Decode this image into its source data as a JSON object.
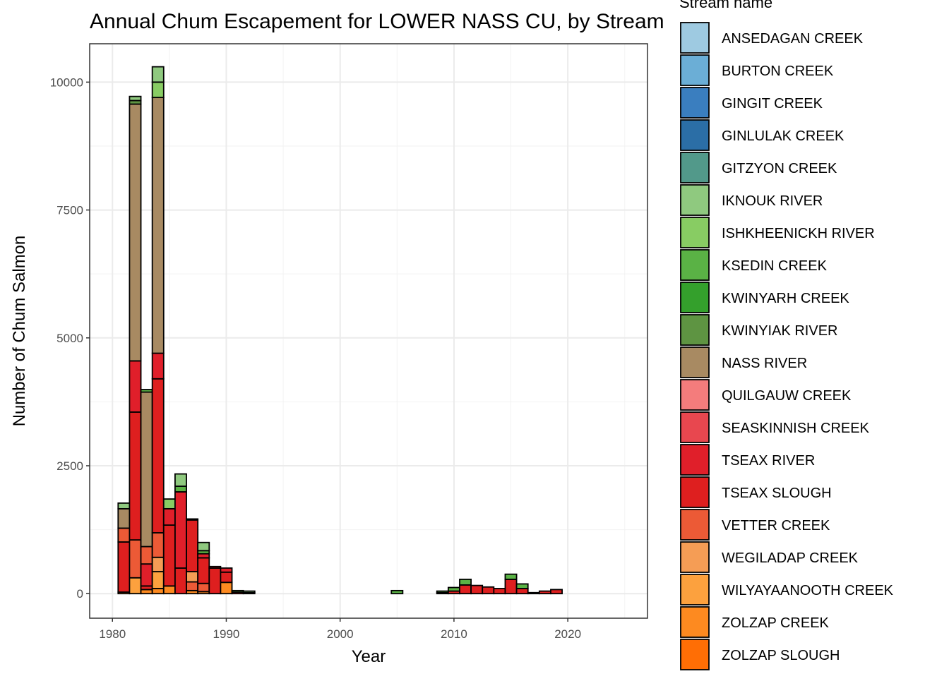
{
  "chart_data": {
    "type": "bar",
    "stacked": true,
    "title": "Annual Chum Escapement for LOWER NASS CU, by Stream",
    "xlabel": "Year",
    "ylabel": "Number of Chum Salmon",
    "xlim": [
      1978,
      2027
    ],
    "ylim": [
      -480,
      10750
    ],
    "x_ticks": [
      1980,
      1990,
      2000,
      2010,
      2020
    ],
    "y_ticks": [
      0,
      2500,
      5000,
      7500,
      10000
    ],
    "x_tick_labels": [
      "1980",
      "1990",
      "2000",
      "2010",
      "2020"
    ],
    "y_tick_labels": [
      "0",
      "2500",
      "5000",
      "7500",
      "10000"
    ],
    "grid": true,
    "legend": {
      "title": "Stream name",
      "position": "right",
      "entries": [
        {
          "name": "ANSEDAGAN CREEK",
          "color": "#9ecae1"
        },
        {
          "name": "BURTON CREEK",
          "color": "#6baed6"
        },
        {
          "name": "GINGIT CREEK",
          "color": "#3a7ebf"
        },
        {
          "name": "GINLULAK CREEK",
          "color": "#2b6ea6"
        },
        {
          "name": "GITZYON CREEK",
          "color": "#52998a"
        },
        {
          "name": "IKNOUK RIVER",
          "color": "#8fc97f"
        },
        {
          "name": "ISHKHEENICKH RIVER",
          "color": "#88cc63"
        },
        {
          "name": "KSEDIN CREEK",
          "color": "#5ab245"
        },
        {
          "name": "KWINYARH CREEK",
          "color": "#34a02c"
        },
        {
          "name": "KWINYIAK RIVER",
          "color": "#5e9442"
        },
        {
          "name": "NASS RIVER",
          "color": "#a88a62"
        },
        {
          "name": "QUILGAUW CREEK",
          "color": "#f47c7c"
        },
        {
          "name": "SEASKINNISH CREEK",
          "color": "#e8474f"
        },
        {
          "name": "TSEAX RIVER",
          "color": "#e01f2a"
        },
        {
          "name": "TSEAX SLOUGH",
          "color": "#de1f1f"
        },
        {
          "name": "VETTER CREEK",
          "color": "#ec5a36"
        },
        {
          "name": "WEGILADAP CREEK",
          "color": "#f59d55"
        },
        {
          "name": "WILYAYAANOOTH CREEK",
          "color": "#fca13e"
        },
        {
          "name": "ZOLZAP CREEK",
          "color": "#fd8a20"
        },
        {
          "name": "ZOLZAP SLOUGH",
          "color": "#ff6e05"
        }
      ]
    },
    "bars": [
      {
        "x": 1981,
        "stacks": [
          [
            "ZOLZAP CREEK",
            30
          ],
          [
            "TSEAX SLOUGH",
            980
          ],
          [
            "VETTER CREEK",
            270
          ],
          [
            "NASS RIVER",
            380
          ],
          [
            "IKNOUK RIVER",
            110
          ]
        ]
      },
      {
        "x": 1982,
        "stacks": [
          [
            "WILYAYAANOOTH CREEK",
            310
          ],
          [
            "VETTER CREEK",
            740
          ],
          [
            "TSEAX SLOUGH",
            2500
          ],
          [
            "TSEAX RIVER",
            1000
          ],
          [
            "NASS RIVER",
            5020
          ],
          [
            "KWINYIAK RIVER",
            70
          ],
          [
            "IKNOUK RIVER",
            80
          ]
        ]
      },
      {
        "x": 1983,
        "stacks": [
          [
            "ZOLZAP CREEK",
            80
          ],
          [
            "TSEAX SLOUGH",
            70
          ],
          [
            "TSEAX RIVER",
            430
          ],
          [
            "VETTER CREEK",
            340
          ],
          [
            "NASS RIVER",
            3020
          ],
          [
            "KSEDIN CREEK",
            50
          ]
        ]
      },
      {
        "x": 1984,
        "stacks": [
          [
            "ZOLZAP CREEK",
            100
          ],
          [
            "WILYAYAANOOTH CREEK",
            330
          ],
          [
            "WEGILADAP CREEK",
            280
          ],
          [
            "VETTER CREEK",
            480
          ],
          [
            "TSEAX SLOUGH",
            3010
          ],
          [
            "TSEAX RIVER",
            500
          ],
          [
            "NASS RIVER",
            5000
          ],
          [
            "ISHKHEENICKH RIVER",
            300
          ],
          [
            "IKNOUK RIVER",
            300
          ]
        ]
      },
      {
        "x": 1985,
        "stacks": [
          [
            "ZOLZAP CREEK",
            150
          ],
          [
            "TSEAX SLOUGH",
            1190
          ],
          [
            "TSEAX RIVER",
            320
          ],
          [
            "ISHKHEENICKH RIVER",
            190
          ]
        ]
      },
      {
        "x": 1986,
        "stacks": [
          [
            "TSEAX SLOUGH",
            500
          ],
          [
            "TSEAX RIVER",
            1490
          ],
          [
            "KSEDIN CREEK",
            110
          ],
          [
            "IKNOUK RIVER",
            240
          ]
        ]
      },
      {
        "x": 1987,
        "stacks": [
          [
            "ZOLZAP CREEK",
            60
          ],
          [
            "VETTER CREEK",
            170
          ],
          [
            "WEGILADAP CREEK",
            200
          ],
          [
            "TSEAX SLOUGH",
            1010
          ],
          [
            "TSEAX RIVER",
            20
          ]
        ]
      },
      {
        "x": 1988,
        "stacks": [
          [
            "ZOLZAP CREEK",
            40
          ],
          [
            "VETTER CREEK",
            160
          ],
          [
            "TSEAX SLOUGH",
            500
          ],
          [
            "TSEAX RIVER",
            80
          ],
          [
            "KSEDIN CREEK",
            60
          ],
          [
            "IKNOUK RIVER",
            160
          ]
        ]
      },
      {
        "x": 1989,
        "stacks": [
          [
            "TSEAX SLOUGH",
            500
          ],
          [
            "TSEAX RIVER",
            30
          ]
        ]
      },
      {
        "x": 1990,
        "stacks": [
          [
            "ZOLZAP CREEK",
            220
          ],
          [
            "TSEAX SLOUGH",
            200
          ],
          [
            "TSEAX RIVER",
            80
          ]
        ]
      },
      {
        "x": 1991,
        "stacks": [
          [
            "TSEAX SLOUGH",
            30
          ],
          [
            "KSEDIN CREEK",
            30
          ]
        ]
      },
      {
        "x": 1992,
        "stacks": [
          [
            "TSEAX SLOUGH",
            20
          ],
          [
            "IKNOUK RIVER",
            30
          ]
        ]
      },
      {
        "x": 2005,
        "stacks": [
          [
            "KSEDIN CREEK",
            60
          ]
        ]
      },
      {
        "x": 2009,
        "stacks": [
          [
            "TSEAX SLOUGH",
            20
          ],
          [
            "KSEDIN CREEK",
            30
          ]
        ]
      },
      {
        "x": 2010,
        "stacks": [
          [
            "TSEAX SLOUGH",
            50
          ],
          [
            "KSEDIN CREEK",
            70
          ]
        ]
      },
      {
        "x": 2011,
        "stacks": [
          [
            "TSEAX SLOUGH",
            170
          ],
          [
            "KSEDIN CREEK",
            110
          ]
        ]
      },
      {
        "x": 2012,
        "stacks": [
          [
            "TSEAX SLOUGH",
            160
          ]
        ]
      },
      {
        "x": 2013,
        "stacks": [
          [
            "TSEAX SLOUGH",
            130
          ]
        ]
      },
      {
        "x": 2014,
        "stacks": [
          [
            "TSEAX SLOUGH",
            100
          ]
        ]
      },
      {
        "x": 2015,
        "stacks": [
          [
            "TSEAX SLOUGH",
            280
          ],
          [
            "KSEDIN CREEK",
            100
          ]
        ]
      },
      {
        "x": 2016,
        "stacks": [
          [
            "TSEAX SLOUGH",
            100
          ],
          [
            "KSEDIN CREEK",
            90
          ]
        ]
      },
      {
        "x": 2017,
        "stacks": [
          [
            "TSEAX SLOUGH",
            20
          ]
        ]
      },
      {
        "x": 2018,
        "stacks": [
          [
            "TSEAX SLOUGH",
            50
          ]
        ]
      },
      {
        "x": 2019,
        "stacks": [
          [
            "TSEAX SLOUGH",
            80
          ]
        ]
      }
    ]
  }
}
